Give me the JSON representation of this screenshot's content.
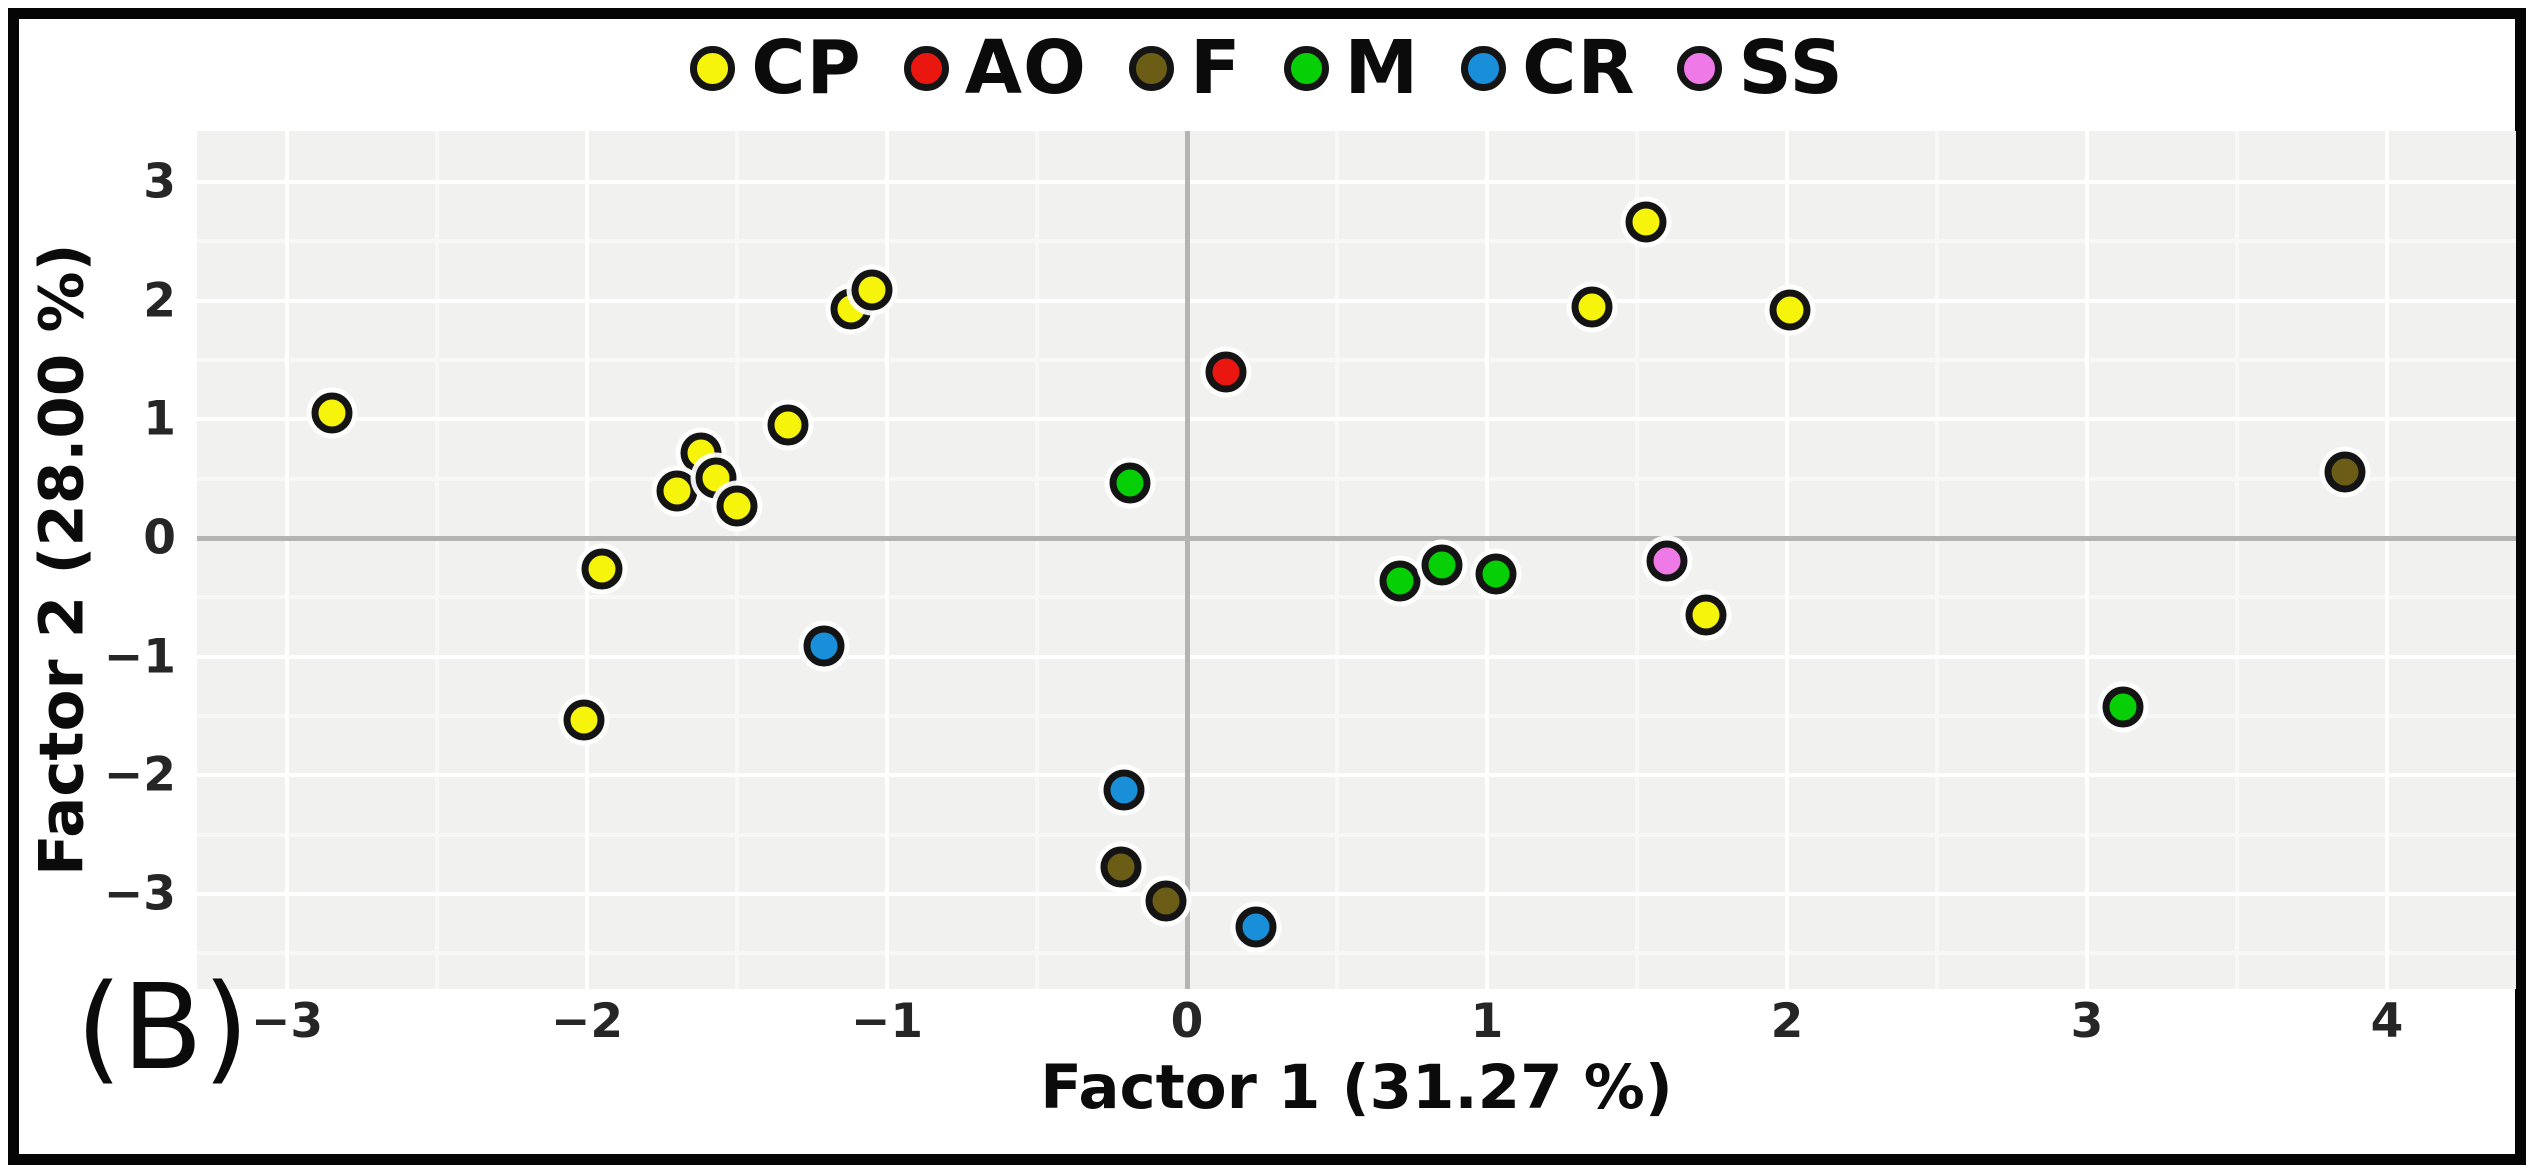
{
  "figure_label": "(B)",
  "axes": {
    "x_title": "Factor 1 (31.27 %)",
    "y_title": "Factor 2 (28.00 %)"
  },
  "chart_data": {
    "type": "scatter",
    "title": "",
    "xlabel": "Factor 1 (31.27 %)",
    "ylabel": "Factor 2 (28.00 %)",
    "legend_position": "top",
    "grid": true,
    "x_range": [
      -3.3,
      4.43
    ],
    "y_range": [
      -3.8,
      3.43
    ],
    "x_ticks": [
      -3,
      -2,
      -1,
      0,
      1,
      2,
      3,
      4
    ],
    "x_tick_labels": [
      "−3",
      "−2",
      "−1",
      "0",
      "1",
      "2",
      "3",
      "4"
    ],
    "y_ticks": [
      -3,
      -2,
      -1,
      0,
      1,
      2,
      3
    ],
    "y_tick_labels": [
      "−3",
      "−2",
      "−1",
      "0",
      "1",
      "2",
      "3"
    ],
    "x_minor_ticks": [
      -2.5,
      -1.5,
      -0.5,
      0.5,
      1.5,
      2.5,
      3.5
    ],
    "y_minor_ticks": [
      -3.5,
      -2.5,
      -1.5,
      -0.5,
      0.5,
      1.5,
      2.5
    ],
    "zero_lines": true,
    "series": [
      {
        "name": "CP",
        "color": "#f6f40a",
        "points": [
          [
            -2.85,
            1.05
          ],
          [
            -1.12,
            1.93
          ],
          [
            -1.05,
            2.09
          ],
          [
            -1.33,
            0.95
          ],
          [
            -1.62,
            0.72
          ],
          [
            -1.7,
            0.4
          ],
          [
            -1.57,
            0.51
          ],
          [
            -1.5,
            0.27
          ],
          [
            -1.95,
            -0.26
          ],
          [
            -2.01,
            -1.53
          ],
          [
            1.35,
            1.95
          ],
          [
            1.53,
            2.66
          ],
          [
            2.01,
            1.92
          ],
          [
            1.73,
            -0.65
          ]
        ]
      },
      {
        "name": "AO",
        "color": "#ea1711",
        "points": [
          [
            0.13,
            1.4
          ]
        ]
      },
      {
        "name": "F",
        "color": "#6b5d16",
        "points": [
          [
            -0.22,
            -2.77
          ],
          [
            -0.07,
            -3.06
          ],
          [
            3.86,
            0.56
          ]
        ]
      },
      {
        "name": "M",
        "color": "#06cf06",
        "points": [
          [
            -0.19,
            0.46
          ],
          [
            0.71,
            -0.36
          ],
          [
            0.85,
            -0.23
          ],
          [
            1.03,
            -0.3
          ],
          [
            3.12,
            -1.42
          ]
        ]
      },
      {
        "name": "CR",
        "color": "#1a8fd9",
        "points": [
          [
            -1.21,
            -0.91
          ],
          [
            -0.21,
            -2.12
          ],
          [
            0.23,
            -3.28
          ]
        ]
      },
      {
        "name": "SS",
        "color": "#ef79e6",
        "points": [
          [
            1.6,
            -0.19
          ]
        ]
      }
    ],
    "style": {
      "panel_bg": "#f1f1f0",
      "major_grid": "#ffffff",
      "minor_grid": "#f8f8f6",
      "zero_line": "#b4b4b2",
      "marker_stroke": "#141414",
      "frame_border": "#050505"
    }
  }
}
